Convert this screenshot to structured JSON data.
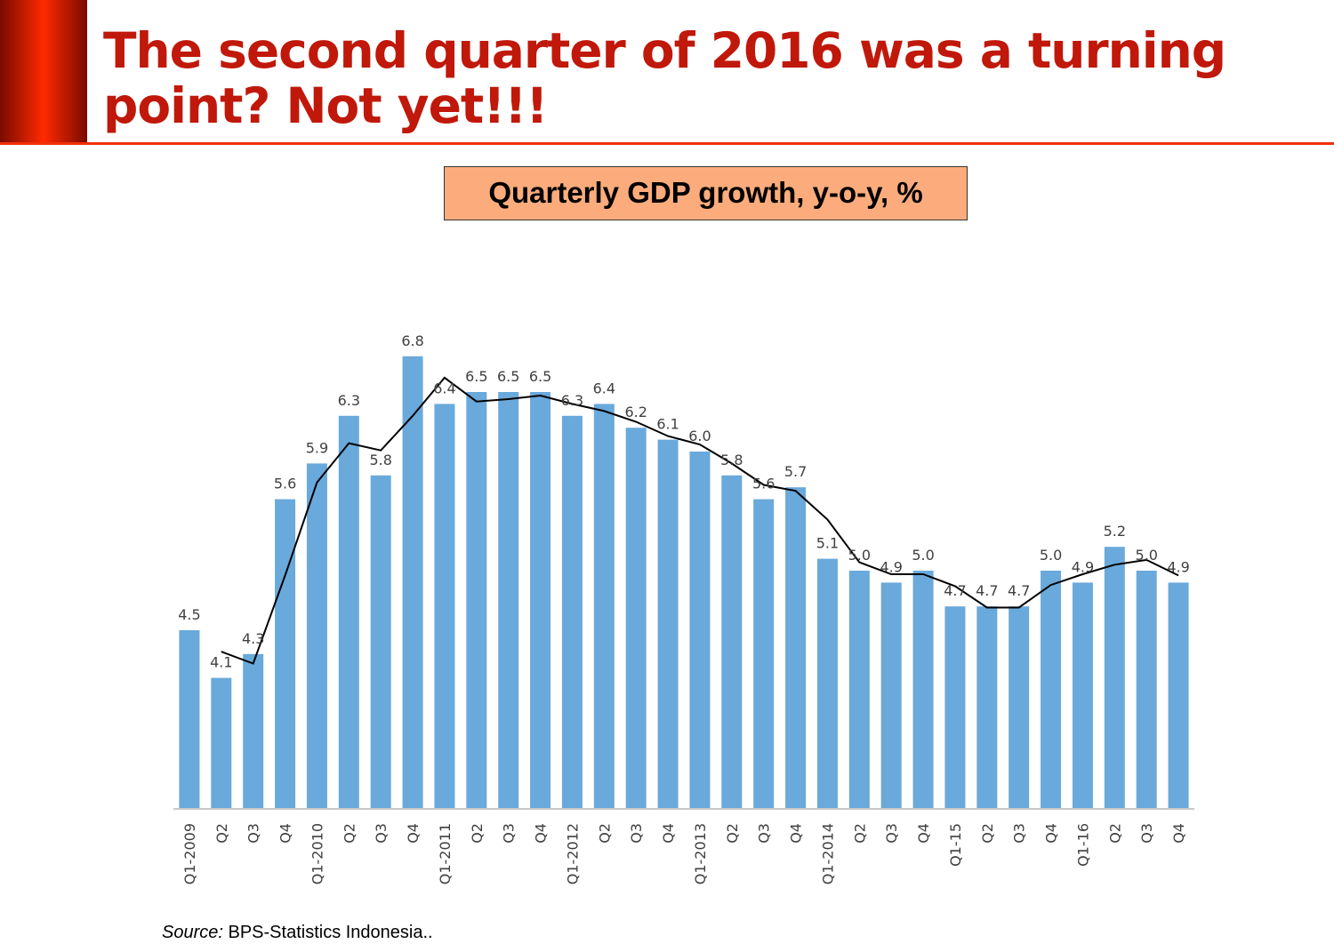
{
  "header": {
    "title": "The second quarter of 2016 was a turning point? Not yet!!!"
  },
  "colors": {
    "bar": "#6aa9db",
    "line": "#000000",
    "title": "#c0180a",
    "subtitle_bg": "#fcac7c",
    "accent": "#ff2a00"
  },
  "chart_data": {
    "type": "bar",
    "title": "Quarterly GDP growth, y-o-y, %",
    "xlabel": "",
    "ylabel": "",
    "ylim": [
      3,
      7
    ],
    "grid": false,
    "categories": [
      "Q1-2009",
      "Q2",
      "Q3",
      "Q4",
      "Q1-2010",
      "Q2",
      "Q3",
      "Q4",
      "Q1-2011",
      "Q2",
      "Q3",
      "Q4",
      "Q1-2012",
      "Q2",
      "Q3",
      "Q4",
      "Q1-2013",
      "Q2",
      "Q3",
      "Q4",
      "Q1-2014",
      "Q2",
      "Q3",
      "Q4",
      "Q1-15",
      "Q2",
      "Q3",
      "Q4",
      "Q1-16",
      "Q2",
      "Q3",
      "Q4"
    ],
    "series": [
      {
        "type": "bar",
        "values": [
          4.5,
          4.1,
          4.3,
          5.6,
          5.9,
          6.3,
          5.8,
          6.8,
          6.4,
          6.5,
          6.5,
          6.5,
          6.3,
          6.4,
          6.2,
          6.1,
          6.0,
          5.8,
          5.6,
          5.7,
          5.1,
          5.0,
          4.9,
          5.0,
          4.7,
          4.7,
          4.7,
          5.0,
          4.9,
          5.2,
          5.0,
          4.9
        ]
      },
      {
        "type": "line",
        "values": [
          null,
          4.32,
          4.22,
          4.96,
          5.74,
          6.07,
          6.01,
          6.3,
          6.62,
          6.42,
          6.44,
          6.47,
          6.4,
          6.34,
          6.25,
          6.13,
          6.06,
          5.9,
          5.72,
          5.67,
          5.43,
          5.07,
          4.97,
          4.97,
          4.87,
          4.69,
          4.69,
          4.88,
          4.97,
          5.05,
          5.09,
          4.96
        ]
      }
    ]
  },
  "source": {
    "label": "Source:",
    "text": " BPS-Statistics Indonesia.."
  }
}
